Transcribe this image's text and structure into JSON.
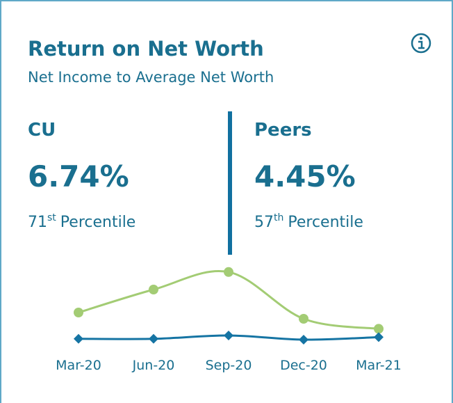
{
  "card": {
    "title": "Return on Net Worth",
    "subtitle": "Net Income to Average Net Worth",
    "cu": {
      "label": "CU",
      "value": "6.74%",
      "rank": "71",
      "suffix": "st",
      "percentile": "Percentile"
    },
    "peers": {
      "label": "Peers",
      "value": "4.45%",
      "rank": "57",
      "suffix": "th",
      "percentile": "Percentile"
    }
  },
  "chart_data": {
    "type": "line",
    "categories": [
      "Mar-20",
      "Jun-20",
      "Sep-20",
      "Dec-20",
      "Mar-21"
    ],
    "ylim": [
      0,
      10
    ],
    "series": [
      {
        "color": "#a3cc74",
        "marker": "circle",
        "values": [
          4.25,
          7.0,
          9.1,
          3.5,
          2.3
        ]
      },
      {
        "color": "#1574a3",
        "marker": "diamond",
        "values": [
          1.1,
          1.1,
          1.5,
          1.0,
          1.3
        ]
      }
    ]
  }
}
